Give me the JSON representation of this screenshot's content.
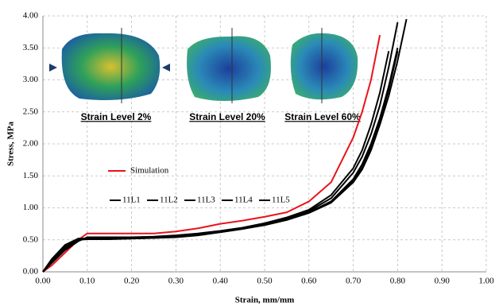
{
  "chart_data": {
    "type": "line",
    "xlabel": "Strain, mm/mm",
    "ylabel": "Stress, MPa",
    "annotations": [
      "Strain Level 2%",
      "Strain Level 20%",
      "Strain Level 60%"
    ],
    "x": [
      0,
      0.02,
      0.05,
      0.08,
      0.1,
      0.15,
      0.2,
      0.25,
      0.3,
      0.35,
      0.4,
      0.45,
      0.5,
      0.55,
      0.6,
      0.65,
      0.7,
      0.72,
      0.74,
      0.76,
      0.78,
      0.8,
      0.82
    ],
    "series": [
      {
        "name": "Simulation",
        "color": "#e8141b",
        "values": [
          0,
          0.1,
          0.3,
          0.5,
          0.6,
          0.6,
          0.6,
          0.6,
          0.63,
          0.68,
          0.75,
          0.8,
          0.86,
          0.93,
          1.1,
          1.4,
          2.1,
          2.5,
          3.0,
          3.7,
          null,
          null,
          null
        ]
      },
      {
        "name": "11L1",
        "color": "#000000",
        "values": [
          0,
          0.2,
          0.42,
          0.52,
          0.52,
          0.52,
          0.52,
          0.53,
          0.55,
          0.58,
          0.63,
          0.68,
          0.75,
          0.83,
          0.95,
          1.15,
          1.55,
          1.8,
          2.15,
          2.6,
          3.2,
          3.9,
          null
        ]
      },
      {
        "name": "11L2",
        "color": "#000000",
        "values": [
          0,
          0.18,
          0.4,
          0.5,
          0.51,
          0.51,
          0.52,
          0.53,
          0.54,
          0.57,
          0.62,
          0.67,
          0.74,
          0.82,
          0.93,
          1.1,
          1.45,
          1.68,
          2.0,
          2.4,
          2.9,
          3.5,
          null
        ]
      },
      {
        "name": "11L3",
        "color": "#000000",
        "values": [
          0,
          0.16,
          0.38,
          0.5,
          0.52,
          0.52,
          0.53,
          0.54,
          0.55,
          0.58,
          0.62,
          0.67,
          0.73,
          0.81,
          0.92,
          1.08,
          1.4,
          1.6,
          1.9,
          2.3,
          2.75,
          3.3,
          3.95
        ]
      },
      {
        "name": "11L4",
        "color": "#000000",
        "values": [
          0,
          0.15,
          0.36,
          0.49,
          0.53,
          0.53,
          0.53,
          0.54,
          0.56,
          0.59,
          0.63,
          0.68,
          0.74,
          0.82,
          0.93,
          1.1,
          1.42,
          1.63,
          1.95,
          2.35,
          2.85,
          3.45,
          null
        ]
      },
      {
        "name": "11L5",
        "color": "#000000",
        "values": [
          0,
          0.14,
          0.34,
          0.48,
          0.54,
          0.54,
          0.54,
          0.55,
          0.57,
          0.6,
          0.64,
          0.69,
          0.76,
          0.85,
          0.97,
          1.2,
          1.62,
          1.9,
          2.3,
          2.8,
          3.45,
          null,
          null
        ]
      }
    ],
    "xlim": [
      0,
      1
    ],
    "ylim": [
      0,
      4
    ],
    "grid": true,
    "xticks": [
      {
        "value": 0,
        "label": "0.00"
      },
      {
        "value": 0.1,
        "label": "0.10"
      },
      {
        "value": 0.2,
        "label": "0.20"
      },
      {
        "value": 0.3,
        "label": "0.30"
      },
      {
        "value": 0.4,
        "label": "0.40"
      },
      {
        "value": 0.5,
        "label": "0.50"
      },
      {
        "value": 0.6,
        "label": "0.60"
      },
      {
        "value": 0.7,
        "label": "0.70"
      },
      {
        "value": 0.8,
        "label": "0.80"
      },
      {
        "value": 0.9,
        "label": "0.90"
      },
      {
        "value": 1,
        "label": "1.00"
      }
    ],
    "yticks": [
      {
        "value": 0,
        "label": "0.00"
      },
      {
        "value": 0.5,
        "label": "0.50"
      },
      {
        "value": 1,
        "label": "1.00"
      },
      {
        "value": 1.5,
        "label": "1.50"
      },
      {
        "value": 2,
        "label": "2.00"
      },
      {
        "value": 2.5,
        "label": "2.50"
      },
      {
        "value": 3,
        "label": "3.00"
      },
      {
        "value": 3.5,
        "label": "3.50"
      },
      {
        "value": 4,
        "label": "4.00"
      }
    ]
  }
}
